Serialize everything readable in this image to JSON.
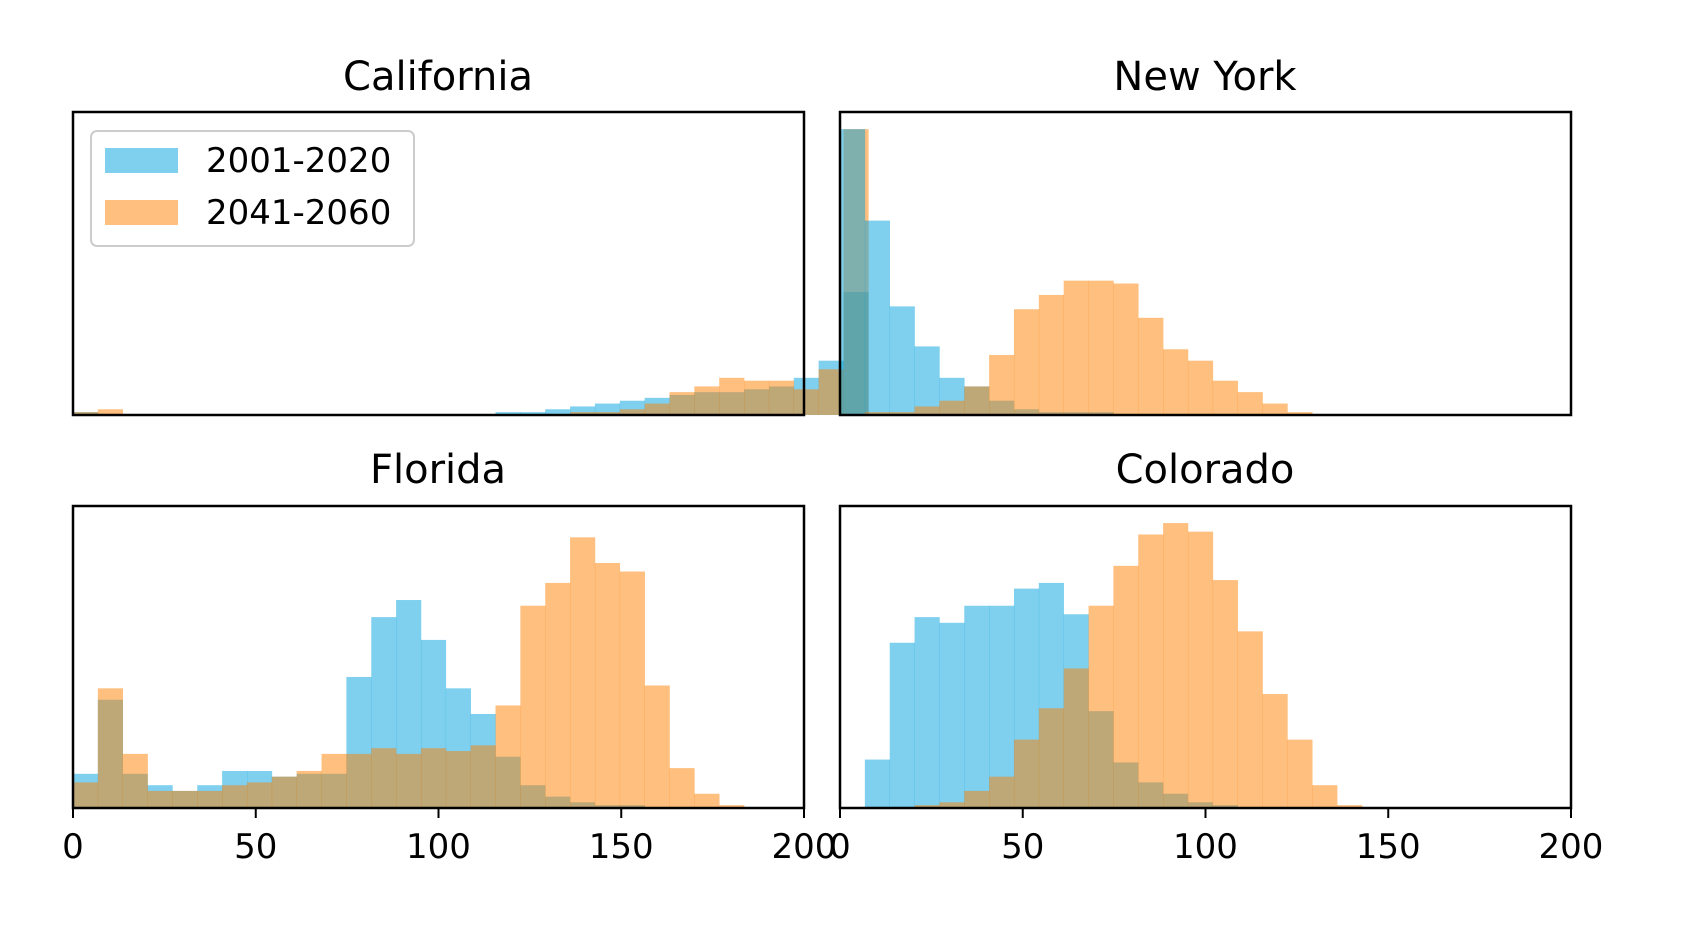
{
  "chart_data": {
    "type": "histogram",
    "grid": false,
    "shared_x": true,
    "xlim": [
      0,
      200
    ],
    "xticks": [
      "0",
      "50",
      "100",
      "150",
      "200"
    ],
    "bin_width": 6.8,
    "alpha": 0.5,
    "colors": {
      "2001-2020": "#00a1de",
      "2041-2060": "#ff8000"
    },
    "legend": {
      "location": "upper left",
      "panel": 0,
      "entries": [
        "2001-2020",
        "2041-2060"
      ]
    },
    "panels": [
      {
        "title": "California",
        "ymax": 1.06,
        "series": [
          {
            "name": "2001-2020",
            "values": [
              0.01,
              0,
              0,
              0,
              0,
              0,
              0,
              0,
              0,
              0,
              0,
              0,
              0,
              0,
              0,
              0,
              0,
              0.01,
              0.01,
              0.02,
              0.03,
              0.04,
              0.05,
              0.06,
              0.07,
              0.08,
              0.08,
              0.09,
              0.1,
              0.13,
              0.19,
              0.43
            ]
          },
          {
            "name": "2041-2060",
            "values": [
              0.01,
              0.02,
              0,
              0,
              0,
              0,
              0,
              0,
              0,
              0,
              0,
              0,
              0,
              0,
              0,
              0,
              0,
              0,
              0,
              0,
              0.01,
              0.01,
              0.02,
              0.04,
              0.08,
              0.1,
              0.13,
              0.12,
              0.12,
              0.09,
              0.16,
              1.0
            ]
          }
        ]
      },
      {
        "title": "New York",
        "ymax": 1.06,
        "series": [
          {
            "name": "2001-2020",
            "values": [
              1.0,
              0.68,
              0.38,
              0.24,
              0.13,
              0.1,
              0.05,
              0.02,
              0.01,
              0.01,
              0.01,
              0.0,
              0.0,
              0.0,
              0.0,
              0.0,
              0,
              0,
              0,
              0,
              0,
              0,
              0,
              0,
              0,
              0,
              0,
              0,
              0,
              0,
              0,
              0
            ]
          },
          {
            "name": "2041-2060",
            "values": [
              0.0,
              0.01,
              0.01,
              0.03,
              0.05,
              0.1,
              0.21,
              0.37,
              0.42,
              0.47,
              0.47,
              0.46,
              0.34,
              0.23,
              0.19,
              0.12,
              0.08,
              0.04,
              0.01,
              0,
              0,
              0,
              0,
              0,
              0,
              0,
              0,
              0,
              0,
              0,
              0,
              0
            ]
          }
        ]
      },
      {
        "title": "Florida",
        "ymax": 1.06,
        "series": [
          {
            "name": "2001-2020",
            "values": [
              0.12,
              0.38,
              0.12,
              0.08,
              0.06,
              0.08,
              0.13,
              0.13,
              0.11,
              0.12,
              0.12,
              0.46,
              0.67,
              0.73,
              0.59,
              0.42,
              0.33,
              0.18,
              0.08,
              0.04,
              0.02,
              0.01,
              0.01,
              0,
              0,
              0,
              0,
              0,
              0,
              0,
              0,
              0
            ]
          },
          {
            "name": "2041-2060",
            "values": [
              0.09,
              0.42,
              0.19,
              0.06,
              0.06,
              0.06,
              0.08,
              0.09,
              0.11,
              0.13,
              0.19,
              0.19,
              0.21,
              0.19,
              0.21,
              0.2,
              0.22,
              0.36,
              0.71,
              0.79,
              0.95,
              0.86,
              0.83,
              0.43,
              0.14,
              0.05,
              0.01,
              0,
              0,
              0,
              0,
              0
            ]
          }
        ]
      },
      {
        "title": "Colorado",
        "ymax": 1.06,
        "series": [
          {
            "name": "2001-2020",
            "values": [
              0,
              0.17,
              0.58,
              0.67,
              0.65,
              0.71,
              0.71,
              0.77,
              0.79,
              0.68,
              0.34,
              0.16,
              0.09,
              0.05,
              0.02,
              0.01,
              0,
              0,
              0,
              0,
              0,
              0,
              0,
              0,
              0,
              0,
              0,
              0,
              0,
              0,
              0,
              0
            ]
          },
          {
            "name": "2041-2060",
            "values": [
              0,
              0,
              0,
              0.01,
              0.02,
              0.06,
              0.11,
              0.24,
              0.35,
              0.49,
              0.71,
              0.85,
              0.96,
              1.0,
              0.97,
              0.8,
              0.62,
              0.4,
              0.24,
              0.08,
              0.01,
              0,
              0,
              0,
              0,
              0,
              0,
              0,
              0,
              0,
              0,
              0
            ]
          }
        ]
      }
    ]
  }
}
